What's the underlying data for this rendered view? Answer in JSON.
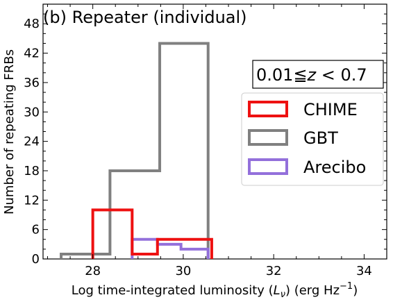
{
  "chart_data": {
    "type": "histogram",
    "panel_title": "(b) Repeater (individual)",
    "redshift_box": "0.01≦z < 0.7",
    "redshift_parts": {
      "lower": "0.01≦",
      "var": "z",
      "upper": " < 0.7"
    },
    "xlabel": {
      "main": "Log time-integrated luminosity (",
      "var": "L",
      "sub": "ν",
      "mid": ") (erg Hz",
      "sup": "−1",
      "end": ")"
    },
    "ylabel": "Number of repeating FRBs",
    "xlim": [
      26.9,
      34.5
    ],
    "ylim": [
      0,
      52
    ],
    "xticks": [
      28,
      30,
      32,
      34
    ],
    "yticks": [
      0,
      6,
      12,
      18,
      24,
      30,
      36,
      42,
      48
    ],
    "legend_position": "right",
    "series": [
      {
        "name": "CHIME",
        "color": "#ee1111",
        "edges": [
          28.0,
          28.87,
          29.43,
          30.63
        ],
        "counts": [
          10,
          1,
          4
        ]
      },
      {
        "name": "GBT",
        "color": "#808080",
        "edges": [
          27.3,
          28.38,
          29.48,
          30.55
        ],
        "counts": [
          1,
          18,
          44
        ]
      },
      {
        "name": "Arecibo",
        "color": "#9370db",
        "edges": [
          28.87,
          29.43,
          29.95,
          30.55
        ],
        "counts": [
          4,
          3,
          2
        ]
      }
    ]
  }
}
